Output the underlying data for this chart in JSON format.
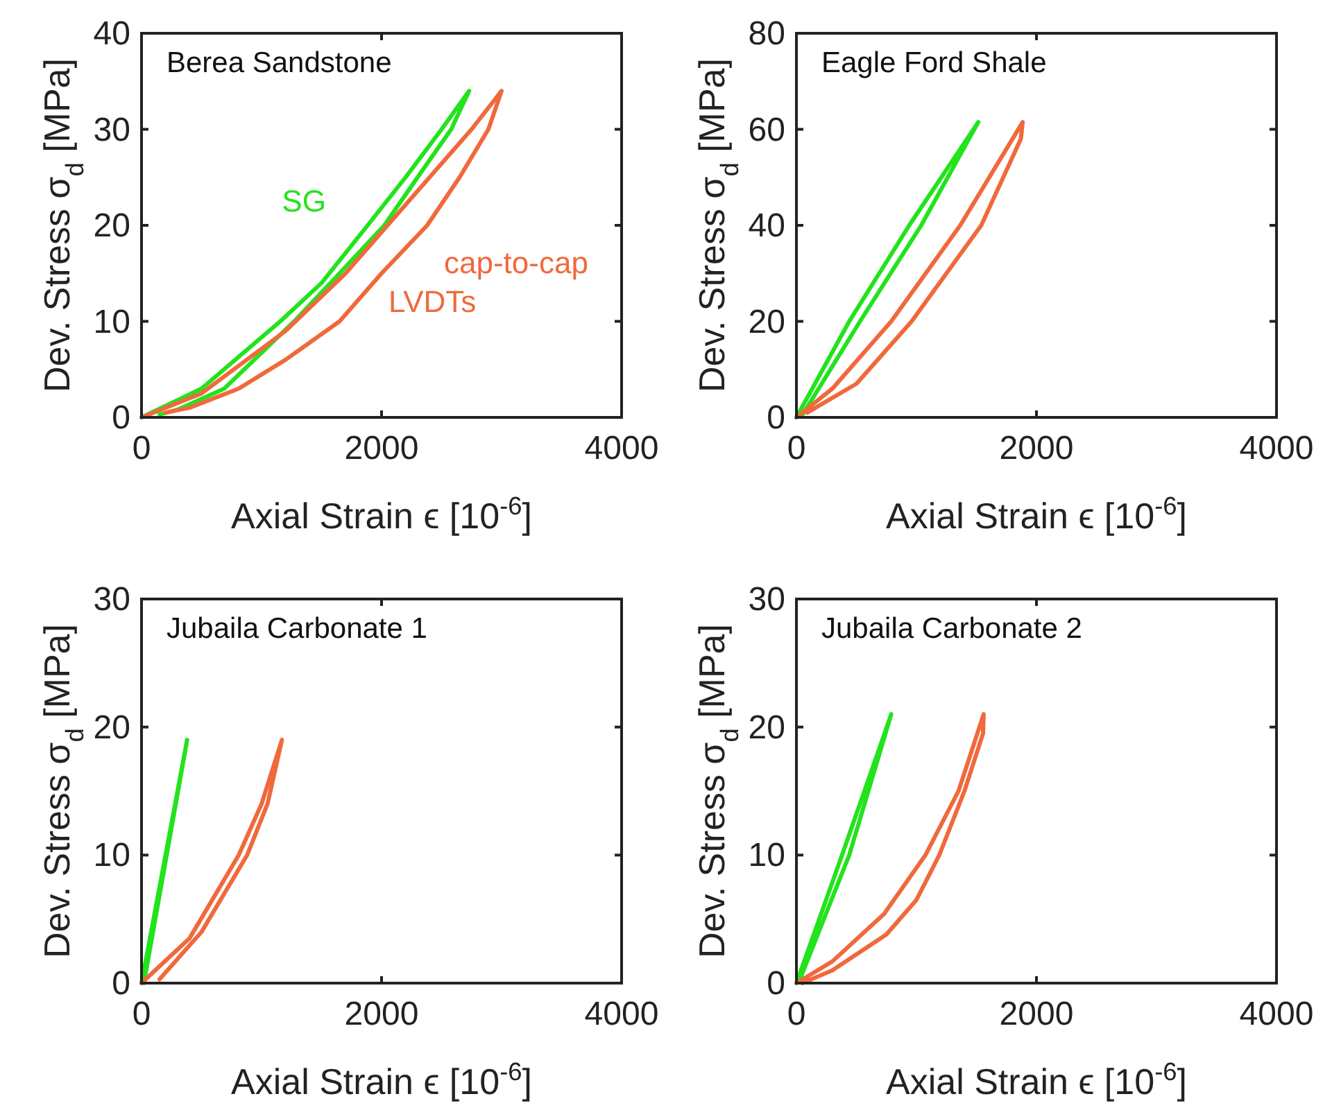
{
  "chart_data": [
    {
      "type": "line",
      "title": "Berea Sandstone",
      "xlabel": "Axial Strain ϵ [10$^{-6}$]",
      "ylabel": "Dev. Stress σ$_{d}$ [MPa]",
      "xlim": [
        0,
        4000
      ],
      "ylim": [
        0,
        40
      ],
      "xticks": [
        0,
        2000,
        4000
      ],
      "yticks": [
        0,
        10,
        20,
        30,
        40
      ],
      "grid": false,
      "line_style": "solid",
      "marker": "none",
      "series": [
        {
          "name": "SG",
          "color": "#22e31c",
          "x": [
            0,
            500,
            1156,
            1500,
            1884,
            2200,
            2500,
            2730,
            2580,
            2300,
            2023,
            1650,
            1272,
            690,
            300,
            150
          ],
          "values": [
            0,
            3,
            10,
            14,
            20,
            25,
            30,
            34,
            30,
            25,
            20,
            15,
            10,
            3,
            0.8,
            0.3
          ]
        },
        {
          "name": "cap-to-cap LVDTs",
          "color": "#f0693c",
          "x": [
            0,
            500,
            1200,
            1700,
            2050,
            2400,
            2750,
            3000,
            2890,
            2650,
            2380,
            2000,
            1650,
            1200,
            810,
            400,
            200
          ],
          "values": [
            0,
            2.5,
            9,
            15,
            20,
            25,
            30,
            34,
            30,
            25,
            20,
            15,
            10,
            6,
            3,
            1,
            0.5
          ]
        }
      ]
    },
    {
      "type": "line",
      "title": "Eagle Ford Shale",
      "xlabel": "Axial Strain ϵ [10$^{-6}$]",
      "ylabel": "Dev. Stress σ$_{d}$ [MPa]",
      "xlim": [
        0,
        4000
      ],
      "ylim": [
        0,
        80
      ],
      "xticks": [
        0,
        2000,
        4000
      ],
      "yticks": [
        0,
        20,
        40,
        60,
        80
      ],
      "grid": false,
      "line_style": "solid",
      "marker": "none",
      "series": [
        {
          "color": "#22e31c",
          "x": [
            0,
            440,
            940,
            1515,
            1040,
            530,
            50
          ],
          "values": [
            0,
            20,
            40,
            61.5,
            40,
            20,
            0.5
          ]
        },
        {
          "color": "#f0693c",
          "x": [
            0,
            300,
            790,
            1365,
            1885,
            1870,
            1540,
            960,
            500,
            90
          ],
          "values": [
            0,
            6,
            20,
            40,
            61.5,
            58,
            40,
            20,
            7,
            1
          ]
        }
      ]
    },
    {
      "type": "line",
      "title": "Jubaila Carbonate 1",
      "xlabel": "Axial Strain ϵ [10$^{-6}$]",
      "ylabel": "Dev. Stress σ$_{d}$ [MPa]",
      "xlim": [
        0,
        4000
      ],
      "ylim": [
        0,
        30
      ],
      "xticks": [
        0,
        2000,
        4000
      ],
      "yticks": [
        0,
        10,
        20,
        30
      ],
      "grid": false,
      "line_style": "solid",
      "marker": "none",
      "series": [
        {
          "color": "#22e31c",
          "x": [
            0,
            380,
            20
          ],
          "values": [
            0,
            19,
            0
          ]
        },
        {
          "color": "#f0693c",
          "x": [
            0,
            400,
            810,
            1000,
            1170,
            1050,
            880,
            500,
            150
          ],
          "values": [
            0,
            3.5,
            10,
            14,
            19,
            14,
            10,
            4,
            0.3
          ]
        }
      ]
    },
    {
      "type": "line",
      "title": "Jubaila Carbonate 2",
      "xlabel": "Axial Strain ϵ [10$^{-6}$]",
      "ylabel": "Dev. Stress σ$_{d}$ [MPa]",
      "xlim": [
        0,
        4000
      ],
      "ylim": [
        0,
        30
      ],
      "xticks": [
        0,
        2000,
        4000
      ],
      "yticks": [
        0,
        10,
        20,
        30
      ],
      "grid": false,
      "line_style": "solid",
      "marker": "none",
      "series": [
        {
          "color": "#22e31c",
          "x": [
            0,
            380,
            790,
            440,
            30
          ],
          "values": [
            0,
            10,
            21,
            10,
            0.3
          ]
        },
        {
          "color": "#f0693c",
          "x": [
            0,
            300,
            730,
            1075,
            1350,
            1560,
            1555,
            1400,
            1190,
            1000,
            750,
            300,
            50
          ],
          "values": [
            0,
            1.7,
            5.4,
            10,
            15,
            21,
            19.5,
            15,
            10,
            6.5,
            3.8,
            1,
            0
          ]
        }
      ]
    }
  ]
}
